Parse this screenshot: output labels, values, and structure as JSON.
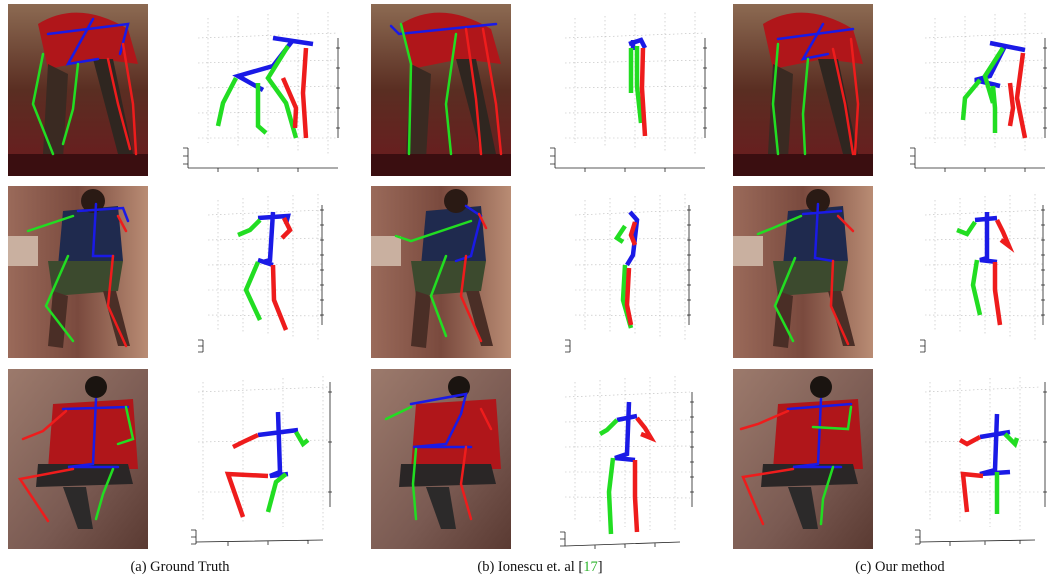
{
  "captions": [
    {
      "text": "(a) Ground Truth"
    },
    {
      "text": "(b) Ionescu et. al [",
      "cite": "17",
      "suffix": "]"
    },
    {
      "text": "(c) Our method"
    }
  ],
  "colors": {
    "left": "#22dd22",
    "right": "#ee1c1c",
    "torso": "#1a1ae6",
    "shirt_red": "#b0161a",
    "shirt_navy": "#1f2a4e",
    "room": "#5a2e22"
  },
  "rows": [
    "row-1",
    "row-2",
    "row-3"
  ],
  "columns": [
    "ground-truth",
    "ionescu",
    "our-method"
  ]
}
